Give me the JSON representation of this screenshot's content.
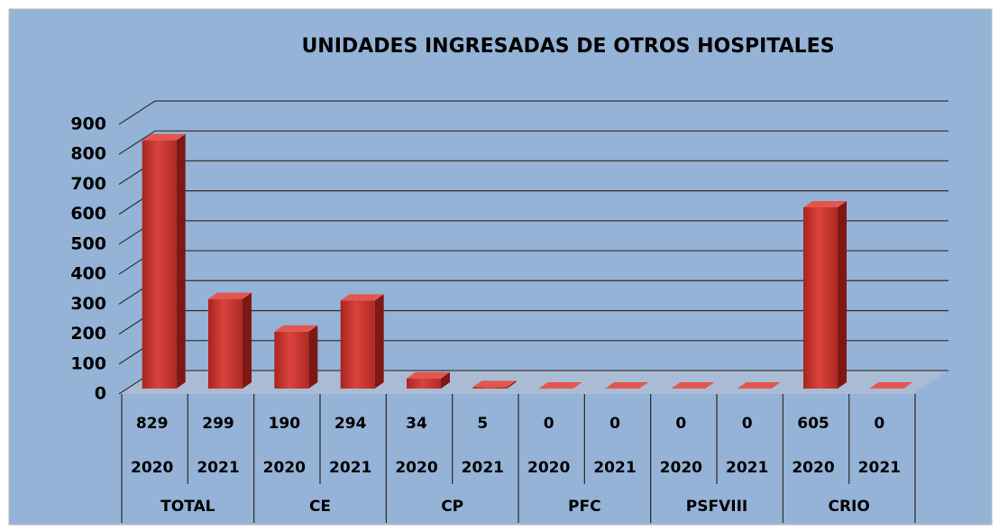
{
  "chart_data": {
    "type": "bar",
    "title": "UNIDADES INGRESADAS DE OTROS HOSPITALES",
    "categories": [
      "2020",
      "2021",
      "2020",
      "2021",
      "2020",
      "2021",
      "2020",
      "2021",
      "2020",
      "2021",
      "2020",
      "2021"
    ],
    "groups": [
      "TOTAL",
      "CE",
      "CP",
      "PFC",
      "PSFVIII",
      "CRIO"
    ],
    "values": [
      829,
      299,
      190,
      294,
      34,
      5,
      0,
      0,
      0,
      0,
      605,
      0
    ],
    "color": "#c8352f",
    "ylim": [
      0,
      900
    ],
    "yticks": [
      0,
      100,
      200,
      300,
      400,
      500,
      600,
      700,
      800,
      900
    ],
    "grid": true
  }
}
